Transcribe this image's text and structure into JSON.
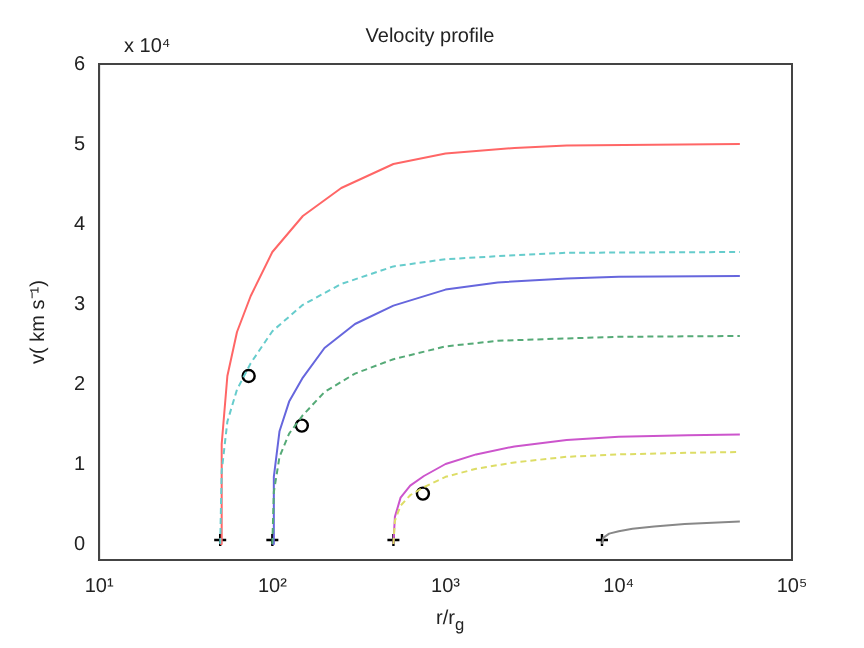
{
  "chart_data": {
    "type": "line",
    "title": "Velocity profile",
    "xlabel": "r/r$_{g}$",
    "ylabel": "v( km s⁻¹)",
    "annotations": [
      "x 10⁴"
    ],
    "log": "x",
    "xlim": [
      10,
      100000
    ],
    "xticks": [
      {
        "value": 10,
        "label": "10¹"
      },
      {
        "value": 100,
        "label": "10²"
      },
      {
        "value": 1000,
        "label": "10³"
      },
      {
        "value": 10000,
        "label": "10⁴"
      },
      {
        "value": 100000,
        "label": "10⁵"
      }
    ],
    "ylim": [
      -0.2,
      6
    ],
    "yticks": [
      0,
      1,
      2,
      3,
      4,
      5,
      6
    ],
    "grid": false,
    "legend": false,
    "series": [
      {
        "type": "line",
        "color": "#ff6666",
        "line_style": "solid",
        "marker": "none",
        "x": [
          50,
          51,
          55,
          62.5,
          75,
          100,
          150,
          250,
          500,
          1000,
          2500,
          5000,
          50000
        ],
        "values": [
          0,
          1.25,
          2.1,
          2.65,
          3.1,
          3.65,
          4.1,
          4.45,
          4.75,
          4.88,
          4.95,
          4.98,
          5.0
        ]
      },
      {
        "type": "line",
        "color": "#66cccc",
        "line_style": "dashed",
        "marker": "none",
        "x": [
          50,
          51,
          55,
          62.5,
          75,
          100,
          150,
          250,
          500,
          1000,
          2500,
          5000,
          50000
        ],
        "values": [
          0,
          0.91,
          1.53,
          1.93,
          2.26,
          2.66,
          2.99,
          3.25,
          3.47,
          3.56,
          3.61,
          3.64,
          3.65
        ]
      },
      {
        "type": "line",
        "color": "#6666dd",
        "line_style": "solid",
        "marker": "none",
        "x": [
          100,
          102,
          110,
          125,
          150,
          200,
          300,
          500,
          1000,
          2000,
          5000,
          10000,
          50000
        ],
        "values": [
          0,
          0.84,
          1.41,
          1.78,
          2.08,
          2.45,
          2.75,
          2.98,
          3.18,
          3.27,
          3.32,
          3.34,
          3.35
        ]
      },
      {
        "type": "line",
        "color": "#55aa77",
        "line_style": "dashed",
        "marker": "none",
        "x": [
          100,
          102,
          110,
          125,
          150,
          200,
          300,
          500,
          1000,
          2000,
          5000,
          10000,
          50000
        ],
        "values": [
          0,
          0.65,
          1.09,
          1.38,
          1.61,
          1.9,
          2.13,
          2.31,
          2.47,
          2.54,
          2.57,
          2.59,
          2.6
        ]
      },
      {
        "type": "line",
        "color": "#cc55cc",
        "line_style": "solid",
        "marker": "none",
        "x": [
          500,
          510,
          550,
          625,
          750,
          1000,
          1500,
          2500,
          5000,
          10000,
          25000,
          50000
        ],
        "values": [
          0,
          0.34,
          0.58,
          0.73,
          0.85,
          1.0,
          1.12,
          1.22,
          1.3,
          1.34,
          1.36,
          1.37
        ]
      },
      {
        "type": "line",
        "color": "#dddd66",
        "line_style": "dashed",
        "marker": "none",
        "x": [
          500,
          510,
          550,
          625,
          750,
          1000,
          1500,
          2500,
          5000,
          10000,
          25000,
          50000
        ],
        "values": [
          0,
          0.29,
          0.48,
          0.61,
          0.71,
          0.84,
          0.94,
          1.02,
          1.09,
          1.12,
          1.14,
          1.15
        ]
      },
      {
        "type": "line",
        "color": "#888888",
        "line_style": "solid",
        "marker": "none",
        "x": [
          8000,
          8160,
          8800,
          10000,
          12000,
          16000,
          24000,
          50000
        ],
        "values": [
          0,
          0.08,
          0.13,
          0.16,
          0.19,
          0.22,
          0.25,
          0.28
        ]
      },
      {
        "type": "scatter",
        "color": "#000000",
        "marker": "cross",
        "x": [
          50,
          100,
          500,
          8000
        ],
        "values": [
          0.05,
          0.05,
          0.05,
          0.05
        ]
      },
      {
        "type": "scatter",
        "color": "#000000",
        "marker": "circle",
        "x": [
          73,
          148,
          740
        ],
        "values": [
          2.1,
          1.48,
          0.63
        ]
      }
    ]
  }
}
